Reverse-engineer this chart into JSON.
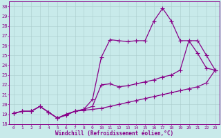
{
  "xlabel": "Windchill (Refroidissement éolien,°C)",
  "bg_color": "#c8eaea",
  "line_color": "#880088",
  "markersize": 2.0,
  "linewidth": 0.9,
  "xlim_min": -0.5,
  "xlim_max": 23.5,
  "ylim_min": 18,
  "ylim_max": 30.5,
  "xticks": [
    0,
    1,
    2,
    3,
    4,
    5,
    6,
    7,
    8,
    9,
    10,
    11,
    12,
    13,
    14,
    15,
    16,
    17,
    18,
    19,
    20,
    21,
    22,
    23
  ],
  "yticks": [
    18,
    19,
    20,
    21,
    22,
    23,
    24,
    25,
    26,
    27,
    28,
    29,
    30
  ],
  "line1_x": [
    0,
    1,
    2,
    3,
    4,
    5,
    6,
    7,
    8,
    9,
    10,
    11,
    12,
    13,
    14,
    15,
    16,
    17,
    18,
    19,
    20,
    21,
    22,
    23
  ],
  "line1_y": [
    19.1,
    19.3,
    19.3,
    19.8,
    19.2,
    18.6,
    18.9,
    19.3,
    19.4,
    19.5,
    19.6,
    19.8,
    20.0,
    20.2,
    20.4,
    20.6,
    20.8,
    21.0,
    21.2,
    21.4,
    21.6,
    21.8,
    22.2,
    23.5
  ],
  "line2_x": [
    0,
    1,
    2,
    3,
    4,
    5,
    6,
    7,
    8,
    9,
    10,
    11,
    12,
    13,
    14,
    15,
    16,
    17,
    18,
    19,
    20,
    21,
    22,
    23
  ],
  "line2_y": [
    19.1,
    19.3,
    19.3,
    19.8,
    19.2,
    18.6,
    19.0,
    19.3,
    19.5,
    20.5,
    24.8,
    26.6,
    26.5,
    26.4,
    26.5,
    26.5,
    28.5,
    29.8,
    28.5,
    26.5,
    26.5,
    25.2,
    23.7,
    23.5
  ],
  "line3_x": [
    0,
    1,
    2,
    3,
    4,
    5,
    6,
    7,
    8,
    9,
    10,
    11,
    12,
    13,
    14,
    15,
    16,
    17,
    18,
    19,
    20,
    21,
    22,
    23
  ],
  "line3_y": [
    19.1,
    19.3,
    19.3,
    19.8,
    19.2,
    18.6,
    19.0,
    19.3,
    19.5,
    19.8,
    22.0,
    22.1,
    21.8,
    21.9,
    22.1,
    22.3,
    22.5,
    22.8,
    23.0,
    23.5,
    26.5,
    26.5,
    25.0,
    23.5
  ]
}
